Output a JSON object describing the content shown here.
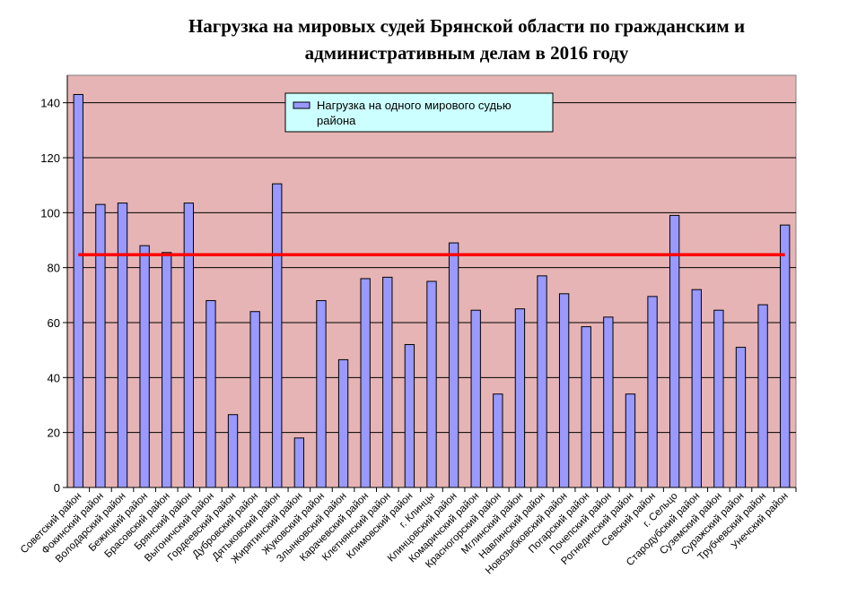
{
  "title_line1": "Нагрузка на мировых судей Брянской области по гражданским и",
  "title_line2": "административным делам в 2016 году",
  "chart_data": {
    "type": "bar",
    "title": "Нагрузка на мировых судей Брянской области по гражданским и административным делам в 2016 году",
    "categories": [
      "Советский район",
      "Фокинский район",
      "Володарский район",
      "Бежицкий район",
      "Брасовский район",
      "Брянский район",
      "Выгоничский район",
      "Гордеевский район",
      "Дубровский район",
      "Дятьковский район",
      "Жирятинский район",
      "Жуковский район",
      "Злынковский район",
      "Карачевский район",
      "Клетнянский район",
      "Климовский район",
      "г. Клинцы",
      "Клинцовский район",
      "Комаричский район",
      "Красногорский район",
      "Мглинский район",
      "Навлинский район",
      "Новозыбковский район",
      "Погарский район",
      "Почепский район",
      "Рогнединский район",
      "Севский район",
      "г. Сельцо",
      "Стародубский район",
      "Суземский район",
      "Суражский район",
      "Трубчевский район",
      "Унечский район"
    ],
    "series": [
      {
        "name": "Нагрузка на одного мирового судью района",
        "values": [
          143,
          103,
          103.5,
          88,
          85.5,
          103.5,
          68,
          26.5,
          64,
          110.5,
          18,
          68,
          46.5,
          76,
          76.5,
          52,
          75,
          89,
          64.5,
          34,
          65,
          77,
          70.5,
          58.5,
          62,
          34,
          69.5,
          99,
          72,
          64.5,
          51,
          66.5,
          95.5
        ],
        "color": "#9999ff"
      }
    ],
    "reference_line": {
      "value": 84.7,
      "color": "#ff0000"
    },
    "ylim": [
      0,
      150
    ],
    "yticks": [
      0,
      20,
      40,
      60,
      80,
      100,
      120,
      140
    ],
    "grid": true,
    "plot_background": "#e6b4b4",
    "legend_position": "top-center",
    "legend_background": "#ccffff",
    "xlabel": "",
    "ylabel": ""
  }
}
